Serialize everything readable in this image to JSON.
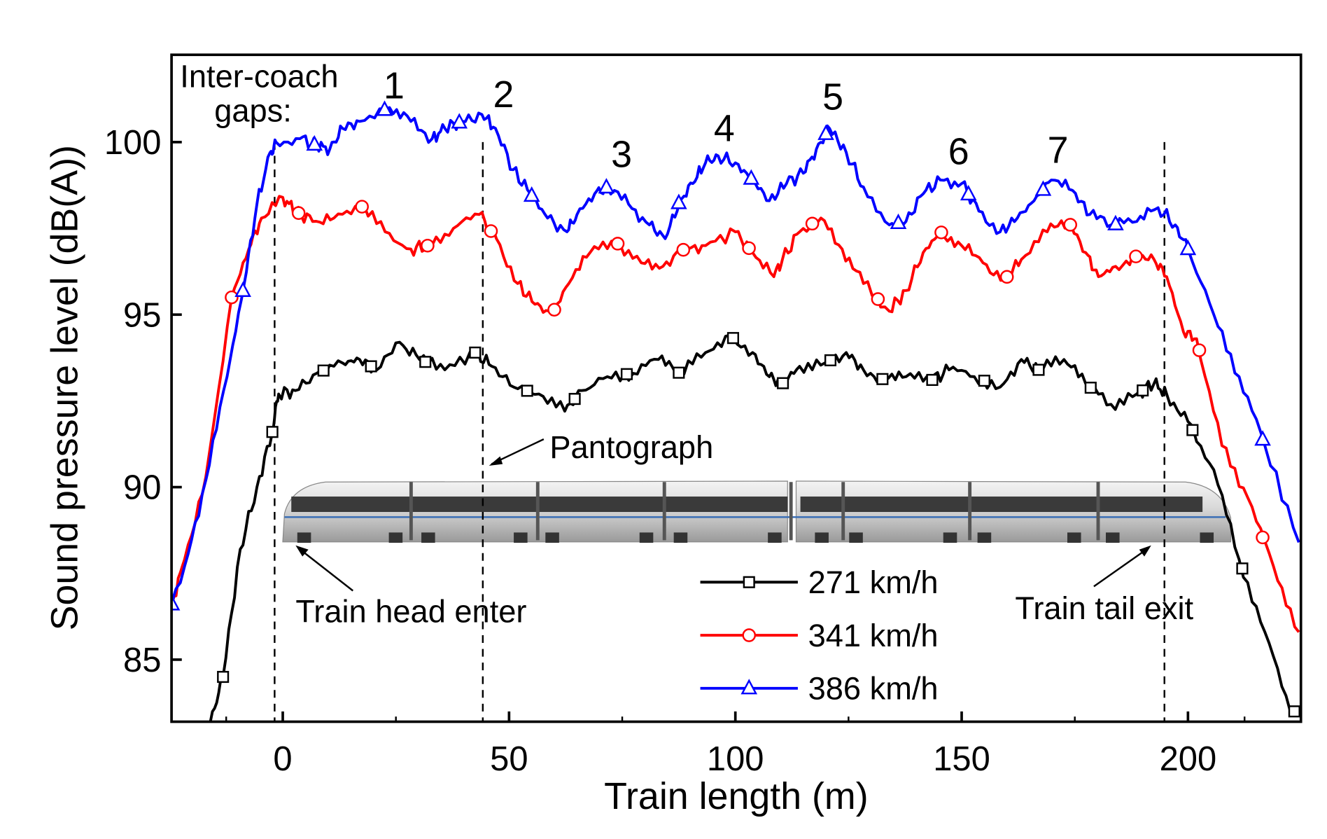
{
  "chart_data": {
    "type": "line",
    "xlabel": "Train length (m)",
    "ylabel": "Sound pressure level (dB(A))",
    "xlim": [
      -24.5,
      224.5
    ],
    "ylim": [
      83.2,
      102.5
    ],
    "xticks": [
      0,
      50,
      100,
      150,
      200
    ],
    "yticks": [
      85,
      90,
      95,
      100
    ],
    "grid": false,
    "legend_placement": "bottom-center",
    "series": [
      {
        "name": "271 km/h",
        "color": "#000000",
        "marker": "square",
        "x": [
          -16,
          -13.2,
          -9.4,
          -5.7,
          -2.3,
          -0.9,
          2.8,
          7.5,
          13.2,
          17,
          20.8,
          25.8,
          30.2,
          35.8,
          42.5,
          46.2,
          51,
          56.6,
          62.3,
          66,
          71.7,
          77.4,
          83,
          87.7,
          93.4,
          98.7,
          103.8,
          107.5,
          110.4,
          114.2,
          119.8,
          124.5,
          128.3,
          133,
          137.7,
          143.4,
          147.2,
          152.8,
          158.5,
          163.2,
          167,
          172.6,
          177.4,
          183,
          188.7,
          192.5,
          195.3,
          200,
          205.7,
          211.3,
          217,
          222.6
        ],
        "y": [
          83.2,
          84.5,
          88.2,
          90.0,
          91.6,
          92.7,
          92.8,
          93.3,
          93.6,
          93.7,
          93.4,
          94.2,
          93.7,
          93.4,
          93.9,
          93.5,
          92.9,
          92.7,
          92.2,
          92.8,
          93.2,
          93.3,
          93.7,
          93.3,
          93.9,
          94.4,
          93.9,
          93.2,
          93.0,
          93.5,
          93.6,
          93.9,
          93.4,
          93.1,
          93.2,
          93.1,
          93.4,
          93.2,
          92.9,
          93.7,
          93.4,
          93.7,
          93.0,
          92.4,
          92.7,
          93.0,
          92.7,
          91.9,
          90.5,
          87.9,
          85.8,
          83.5
        ],
        "marker_x": [
          -13.2,
          -2.3,
          9,
          19.5,
          31.5,
          42.5,
          54,
          64.5,
          76,
          87.5,
          99.5,
          110.5,
          121,
          132.5,
          143.5,
          155,
          167,
          178.5,
          190,
          201,
          212,
          223.5
        ]
      },
      {
        "name": "341 km/h",
        "color": "#ff0000",
        "marker": "circle",
        "x": [
          -24.5,
          -21.7,
          -17,
          -11.3,
          -7.5,
          -4.7,
          0,
          2.8,
          6.6,
          11.3,
          17,
          22.6,
          28.3,
          32,
          37.7,
          43.4,
          47.2,
          51.9,
          55.7,
          59.4,
          63.2,
          67.9,
          73.6,
          79.2,
          84,
          88.7,
          93.4,
          100,
          103.8,
          108.5,
          110.4,
          114.2,
          118.9,
          123.6,
          128.3,
          134,
          137.7,
          141.5,
          145.3,
          150,
          154.7,
          159.4,
          163.2,
          168.9,
          173.6,
          177.4,
          180.2,
          184,
          188.7,
          192.5,
          195.3,
          199,
          201.9,
          207.5,
          213.2,
          218.9,
          224.5
        ],
        "y": [
          86.6,
          87.9,
          90.3,
          95.5,
          96.9,
          97.8,
          98.4,
          98.0,
          97.7,
          97.8,
          98.2,
          97.4,
          96.9,
          97.0,
          97.5,
          97.9,
          97.2,
          95.9,
          95.3,
          95.0,
          95.9,
          96.8,
          97.1,
          96.5,
          96.4,
          96.9,
          97.0,
          97.4,
          96.8,
          96.1,
          96.6,
          97.4,
          97.8,
          96.9,
          95.9,
          95.1,
          95.7,
          96.8,
          97.4,
          97.0,
          96.5,
          96.0,
          96.6,
          97.4,
          97.7,
          96.8,
          96.1,
          96.4,
          96.7,
          96.6,
          96.1,
          94.5,
          94.3,
          91.2,
          89.7,
          87.7,
          85.8
        ],
        "marker_x": [
          -11.3,
          3.5,
          17.5,
          32,
          46,
          60,
          74,
          88.5,
          103,
          117,
          131.5,
          145.5,
          160,
          174,
          188.5,
          202.5,
          216.5
        ]
      },
      {
        "name": "386 km/h",
        "color": "#0000ff",
        "marker": "triangle",
        "x": [
          -24.5,
          -21.7,
          -17,
          -12.3,
          -8.5,
          -5.7,
          -2.8,
          -1.5,
          3.8,
          7.5,
          10.4,
          13.2,
          17,
          23.6,
          28.3,
          33,
          35.8,
          39.6,
          44,
          47,
          50.9,
          54.7,
          58.5,
          62.8,
          65,
          68.9,
          71.7,
          76.4,
          81,
          84.5,
          87.7,
          90.6,
          93.4,
          96.2,
          100,
          103.8,
          107.5,
          111.3,
          115,
          117.9,
          120.8,
          124.5,
          128.3,
          134,
          137.7,
          141.5,
          145.3,
          150,
          153.8,
          158.5,
          162.3,
          166,
          169.8,
          174.5,
          178.3,
          183,
          188.7,
          193.4,
          197.2,
          200,
          205.7,
          211.3,
          217,
          224.5
        ],
        "y": [
          86.6,
          87.7,
          90.2,
          93.2,
          95.9,
          98.2,
          99.7,
          100.0,
          100.1,
          99.9,
          99.8,
          100.4,
          100.6,
          101.0,
          100.6,
          100.1,
          100.4,
          100.6,
          100.8,
          100.4,
          99.2,
          98.5,
          97.8,
          97.4,
          97.9,
          98.5,
          98.7,
          98.2,
          97.6,
          97.2,
          98.3,
          98.8,
          99.4,
          99.6,
          99.4,
          98.9,
          98.3,
          98.8,
          99.1,
          99.8,
          100.4,
          99.7,
          98.7,
          97.6,
          97.7,
          98.5,
          98.9,
          98.8,
          98.0,
          97.4,
          97.8,
          98.3,
          98.9,
          98.6,
          97.9,
          97.6,
          97.7,
          98.1,
          97.6,
          96.9,
          95.0,
          93.2,
          91.2,
          88.4
        ],
        "marker_x": [
          -24.5,
          -8.8,
          7,
          22.5,
          39,
          55,
          71.5,
          87.5,
          103.5,
          120,
          136,
          151.5,
          168,
          184,
          200,
          216.5
        ]
      }
    ],
    "annotations": {
      "gaps_label_line1": "Inter-coach",
      "gaps_label_line2": "gaps:",
      "gap_numbers": [
        "1",
        "2",
        "3",
        "4",
        "5",
        "6",
        "7"
      ],
      "pantograph": "Pantograph",
      "head_enter": "Train head enter",
      "tail_exit": "Train tail exit"
    },
    "reference_lines_x": [
      -1.8,
      44.2,
      194.8
    ]
  }
}
